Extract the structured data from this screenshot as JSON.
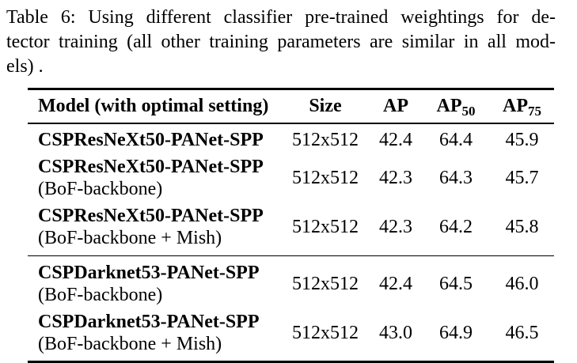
{
  "caption": {
    "lines": [
      "Table 6: Using different classifier pre-trained weightings for de-",
      "tector training (all other training parameters are similar in all mod-",
      "els) ."
    ]
  },
  "table": {
    "headers": [
      {
        "label": "Model (with optimal setting)",
        "sub": ""
      },
      {
        "label": "Size",
        "sub": ""
      },
      {
        "label": "AP",
        "sub": ""
      },
      {
        "label": "AP",
        "sub": "50"
      },
      {
        "label": "AP",
        "sub": "75"
      }
    ],
    "rows": [
      {
        "model": "CSPResNeXt50-PANet-SPP",
        "variant": "",
        "size": "512x512",
        "ap": "42.4",
        "ap50": "64.4",
        "ap75": "45.9"
      },
      {
        "model": "CSPResNeXt50-PANet-SPP",
        "variant": "(BoF-backbone)",
        "size": "512x512",
        "ap": "42.3",
        "ap50": "64.3",
        "ap75": "45.7"
      },
      {
        "model": "CSPResNeXt50-PANet-SPP",
        "variant": "(BoF-backbone + Mish)",
        "size": "512x512",
        "ap": "42.3",
        "ap50": "64.2",
        "ap75": "45.8"
      },
      {
        "model": "CSPDarknet53-PANet-SPP",
        "variant": "(BoF-backbone)",
        "size": "512x512",
        "ap": "42.4",
        "ap50": "64.5",
        "ap75": "46.0"
      },
      {
        "model": "CSPDarknet53-PANet-SPP",
        "variant": "(BoF-backbone + Mish)",
        "size": "512x512",
        "ap": "43.0",
        "ap50": "64.9",
        "ap75": "46.5"
      }
    ]
  },
  "colors": {
    "background": "#ffffff",
    "text": "#000000",
    "rule": "#000000"
  }
}
